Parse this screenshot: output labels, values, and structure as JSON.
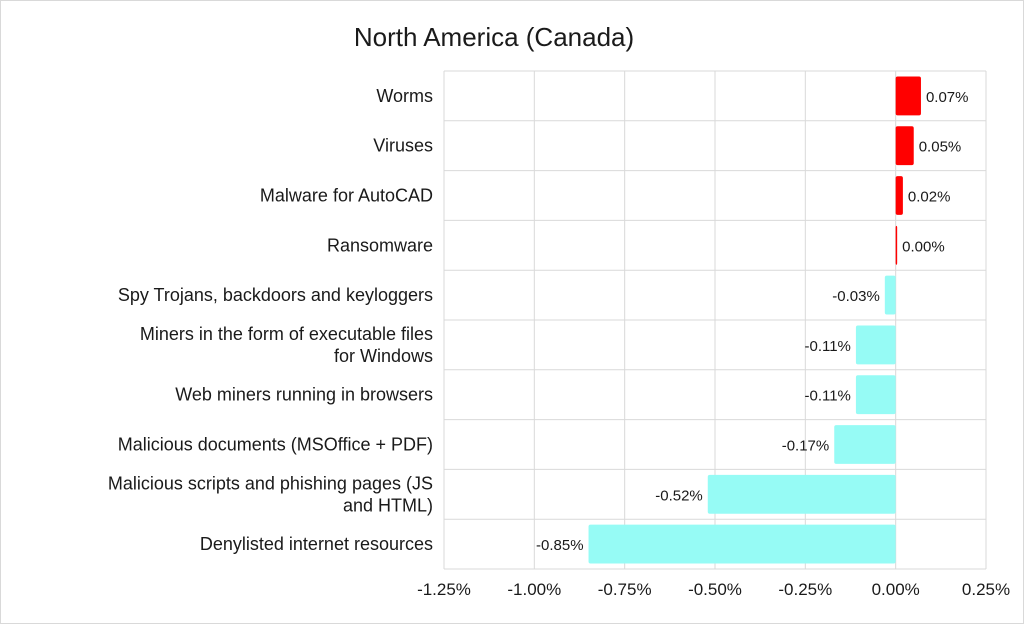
{
  "chart_data": {
    "type": "bar",
    "orientation": "horizontal",
    "title": "North America (Canada)",
    "xlabel": "",
    "ylabel": "",
    "categories": [
      [
        "Worms"
      ],
      [
        "Viruses"
      ],
      [
        "Malware for AutoCAD"
      ],
      [
        "Ransomware"
      ],
      [
        "Spy Trojans, backdoors and keyloggers"
      ],
      [
        "Miners in the form of executable files",
        "for Windows"
      ],
      [
        "Web miners running in browsers"
      ],
      [
        "Malicious documents (MSOffice + PDF)"
      ],
      [
        "Malicious scripts and phishing pages (JS",
        "and HTML)"
      ],
      [
        "Denylisted internet resources"
      ]
    ],
    "values": [
      0.07,
      0.05,
      0.02,
      0.0,
      -0.03,
      -0.11,
      -0.11,
      -0.17,
      -0.52,
      -0.85
    ],
    "data_labels": [
      "0.07%",
      "0.05%",
      "0.02%",
      "0.00%",
      "-0.03%",
      "-0.11%",
      "-0.11%",
      "-0.17%",
      "-0.52%",
      "-0.85%"
    ],
    "xlim": [
      -1.25,
      0.25
    ],
    "xticks": [
      -1.25,
      -1.0,
      -0.75,
      -0.5,
      -0.25,
      0.0,
      0.25
    ],
    "xtick_labels": [
      "-1.25%",
      "-1.00%",
      "-0.75%",
      "-0.50%",
      "-0.25%",
      "0.00%",
      "0.25%"
    ],
    "grid": true,
    "legend": "none",
    "colors": {
      "positive": "#ff0000",
      "negative": "#96fbf5",
      "grid": "#d9d9d9"
    }
  }
}
